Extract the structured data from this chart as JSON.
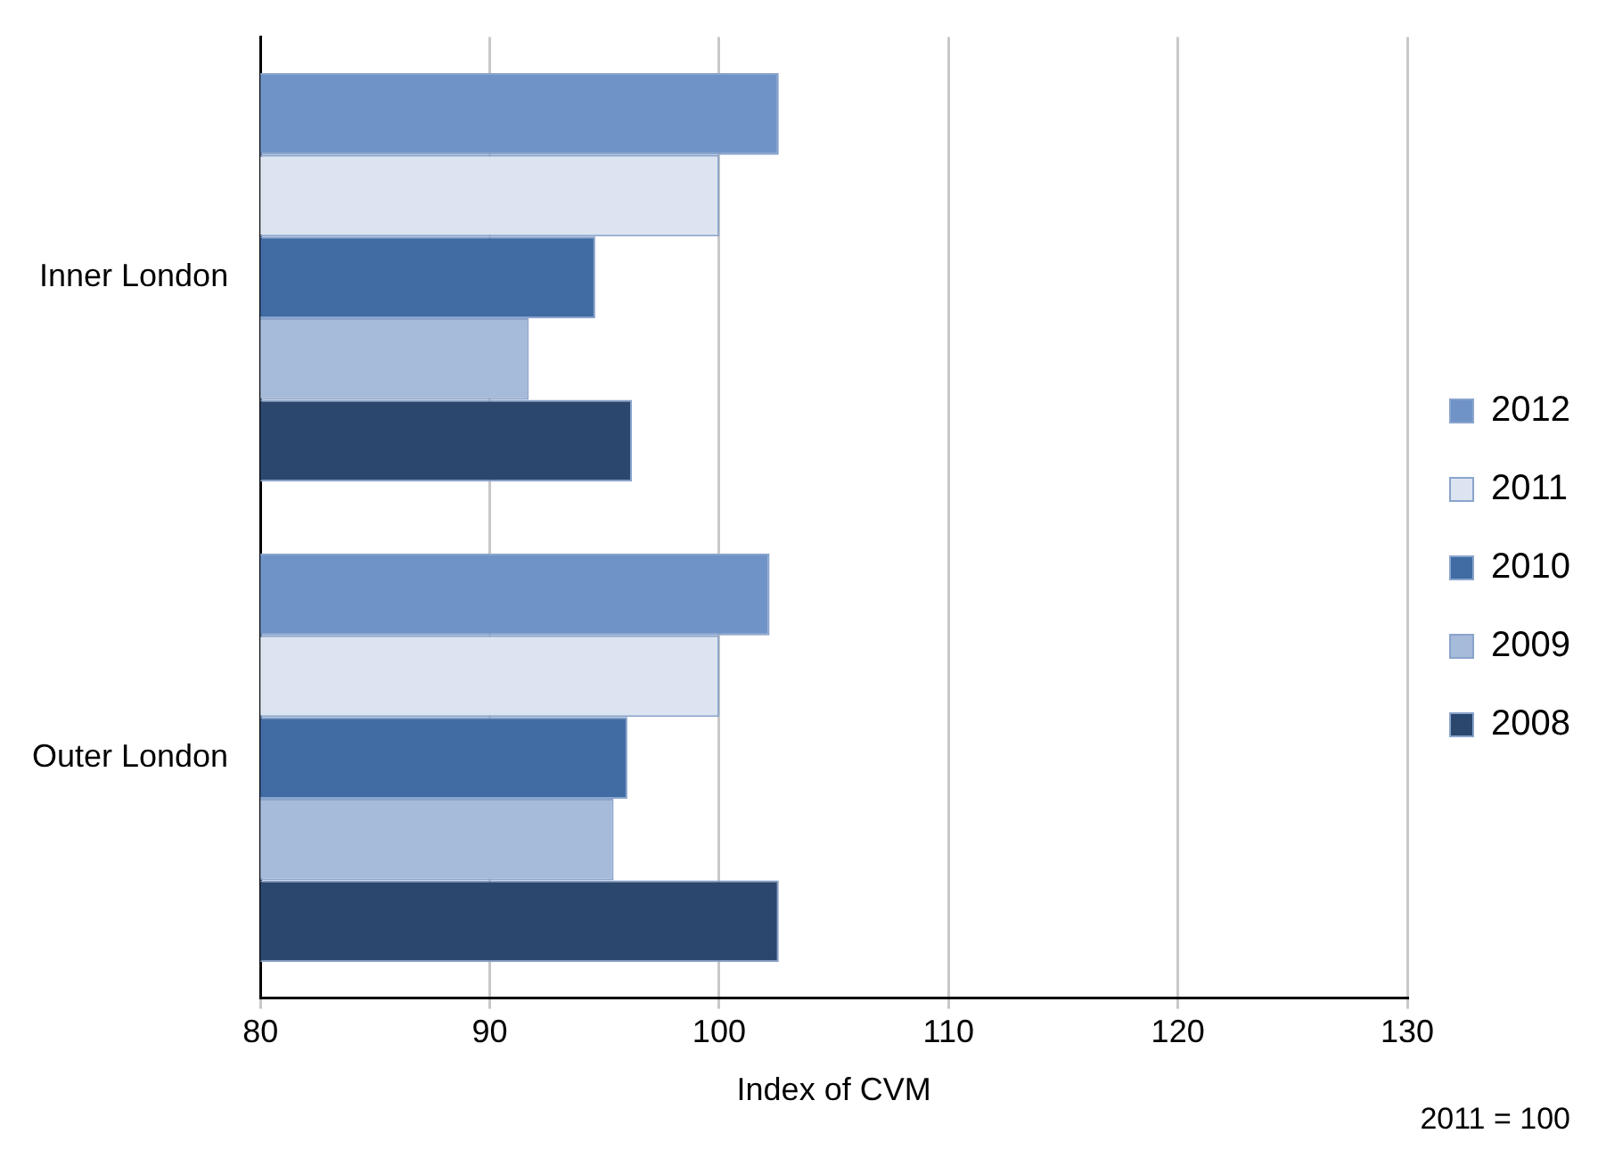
{
  "chart_data": {
    "type": "bar",
    "orientation": "horizontal",
    "categories": [
      "Inner London",
      "Outer London"
    ],
    "series": [
      {
        "name": "2012",
        "color": "#6f93c6",
        "values": [
          102.6,
          102.2
        ]
      },
      {
        "name": "2011",
        "color": "#dbe4f0",
        "values": [
          100,
          100
        ]
      },
      {
        "name": "2010",
        "color": "#406ba3",
        "values": [
          94.6,
          96.0
        ]
      },
      {
        "name": "2009",
        "color": "#a6bad9",
        "values": [
          91.7,
          95.4
        ]
      },
      {
        "name": "2008",
        "color": "#2c476e",
        "values": [
          96.2,
          102.6
        ]
      }
    ],
    "xlabel": "Index of CVM",
    "xlim": [
      80,
      130
    ],
    "xticks": [
      80,
      90,
      100,
      110,
      120,
      130
    ],
    "grid": "x",
    "legend": "right",
    "annotations": [
      "2011 = 100"
    ]
  }
}
